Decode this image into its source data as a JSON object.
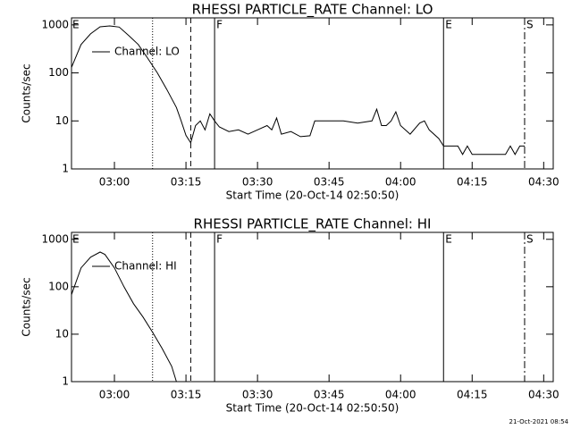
{
  "chart_data": [
    {
      "type": "line",
      "title": "RHESSI PARTICLE_RATE Channel: LO",
      "xlabel": "Start Time (20-Oct-14 02:50:50)",
      "ylabel": "Counts/sec",
      "log_y": true,
      "xlim": [
        "02:51",
        "04:32"
      ],
      "ylim": [
        1,
        1400
      ],
      "xticks": [
        "03:00",
        "03:15",
        "03:30",
        "03:45",
        "04:00",
        "04:15",
        "04:30"
      ],
      "yticks": [
        1,
        10,
        100,
        1000
      ],
      "legend": "upper left",
      "x": [
        "02:51",
        "02:53",
        "02:55",
        "02:57",
        "02:59",
        "03:01",
        "03:03",
        "03:05",
        "03:07",
        "03:09",
        "03:11",
        "03:13",
        "03:14",
        "03:15",
        "03:16",
        "03:17",
        "03:18",
        "03:19",
        "03:20",
        "03:21",
        "03:22",
        "03:24",
        "03:26",
        "03:28",
        "03:30",
        "03:32",
        "03:33",
        "03:34",
        "03:35",
        "03:37",
        "03:39",
        "03:41",
        "03:42",
        "03:45",
        "03:48",
        "03:51",
        "03:54",
        "03:55",
        "03:56",
        "03:57",
        "03:58",
        "03:59",
        "04:00",
        "04:02",
        "04:04",
        "04:05",
        "04:06",
        "04:08",
        "04:09",
        "04:12",
        "04:13",
        "04:14",
        "04:15",
        "04:20",
        "04:22",
        "04:23",
        "04:24",
        "04:25",
        "04:26"
      ],
      "series": [
        {
          "name": "Channel: LO",
          "color": "#000000",
          "values": [
            130,
            390,
            650,
            910,
            950,
            900,
            600,
            390,
            200,
            100,
            45,
            19,
            10,
            5,
            3.5,
            8,
            10,
            6.5,
            14,
            10,
            7.5,
            6,
            6.5,
            5.3,
            6.5,
            8,
            6.5,
            11.5,
            5.3,
            6,
            4.7,
            4.9,
            10,
            10,
            10,
            9,
            10,
            17.5,
            8,
            8,
            10,
            15.5,
            8,
            5.3,
            9,
            10,
            6.5,
            4.3,
            3,
            3,
            2,
            3,
            2,
            2,
            2,
            3,
            2,
            3,
            3
          ]
        }
      ],
      "markers": [
        {
          "x": "03:08",
          "style": "dotted"
        },
        {
          "x": "03:16",
          "style": "dashed"
        },
        {
          "x": "03:21",
          "style": "solid",
          "label": "F"
        },
        {
          "x": "04:09",
          "style": "solid",
          "label": "E"
        },
        {
          "x": "04:26",
          "style": "dashdot",
          "label": "S"
        }
      ],
      "corner_label": "E"
    },
    {
      "type": "line",
      "title": "RHESSI PARTICLE_RATE Channel: HI",
      "xlabel": "Start Time (20-Oct-14 02:50:50)",
      "ylabel": "Counts/sec",
      "log_y": true,
      "xlim": [
        "02:51",
        "04:32"
      ],
      "ylim": [
        1,
        1400
      ],
      "xticks": [
        "03:00",
        "03:15",
        "03:30",
        "03:45",
        "04:00",
        "04:15",
        "04:30"
      ],
      "yticks": [
        1,
        10,
        100,
        1000
      ],
      "legend": "upper left",
      "x": [
        "02:51",
        "02:53",
        "02:55",
        "02:57",
        "02:58",
        "03:00",
        "03:02",
        "03:04",
        "03:06",
        "03:08",
        "03:10",
        "03:12",
        "03:13"
      ],
      "series": [
        {
          "name": "Channel: HI",
          "color": "#000000",
          "values": [
            68,
            250,
            420,
            540,
            480,
            250,
            100,
            44,
            23,
            11,
            5,
            2.1,
            1
          ]
        }
      ],
      "markers": [
        {
          "x": "03:08",
          "style": "dotted"
        },
        {
          "x": "03:16",
          "style": "dashed"
        },
        {
          "x": "03:21",
          "style": "solid",
          "label": "F"
        },
        {
          "x": "04:09",
          "style": "solid",
          "label": "E"
        },
        {
          "x": "04:26",
          "style": "dashdot",
          "label": "S"
        }
      ],
      "corner_label": "E"
    }
  ],
  "footer": "21-Oct-2021 08:54"
}
